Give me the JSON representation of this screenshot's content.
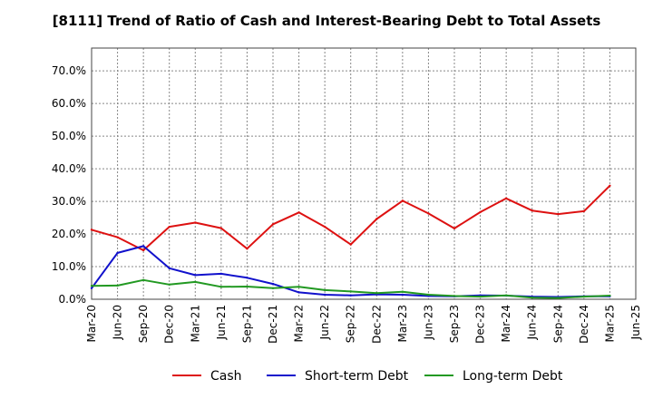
{
  "chart_data": {
    "type": "line",
    "title": "[8111]  Trend of Ratio of Cash and Interest-Bearing Debt to Total Assets",
    "xlabel": "",
    "ylabel": "",
    "ylim": [
      0,
      77
    ],
    "yticks": [
      0,
      10,
      20,
      30,
      40,
      50,
      60,
      70
    ],
    "ytick_labels": [
      "0.0%",
      "10.0%",
      "20.0%",
      "30.0%",
      "40.0%",
      "50.0%",
      "60.0%",
      "70.0%"
    ],
    "x_tick_labels": [
      "Mar-20",
      "Jun-20",
      "Sep-20",
      "Dec-20",
      "Mar-21",
      "Jun-21",
      "Sep-21",
      "Dec-21",
      "Mar-22",
      "Jun-22",
      "Sep-22",
      "Dec-22",
      "Mar-23",
      "Jun-23",
      "Sep-23",
      "Dec-23",
      "Mar-24",
      "Jun-24",
      "Sep-24",
      "Dec-24",
      "Mar-25",
      "Jun-25"
    ],
    "grid": true,
    "legend_position": "bottom",
    "series": [
      {
        "name": "Cash",
        "color": "#dd1111",
        "values": [
          21.3,
          19.0,
          15.0,
          22.2,
          23.5,
          21.8,
          15.5,
          23.0,
          26.6,
          22.2,
          16.8,
          24.6,
          30.2,
          26.3,
          21.7,
          26.7,
          30.9,
          27.2,
          26.1,
          27.0,
          34.8,
          null
        ]
      },
      {
        "name": "Short-term Debt",
        "color": "#1111cc",
        "values": [
          3.4,
          14.2,
          16.3,
          9.5,
          7.4,
          7.8,
          6.6,
          4.7,
          2.1,
          1.4,
          1.2,
          1.5,
          1.4,
          1.0,
          0.9,
          1.2,
          1.1,
          0.8,
          0.7,
          0.9,
          0.9,
          null
        ]
      },
      {
        "name": "Long-term Debt",
        "color": "#229922",
        "values": [
          4.1,
          4.2,
          5.9,
          4.5,
          5.3,
          3.8,
          3.9,
          3.4,
          3.8,
          2.8,
          2.4,
          1.9,
          2.3,
          1.4,
          1.0,
          0.8,
          1.2,
          0.5,
          0.4,
          0.8,
          1.1,
          null
        ]
      }
    ]
  }
}
